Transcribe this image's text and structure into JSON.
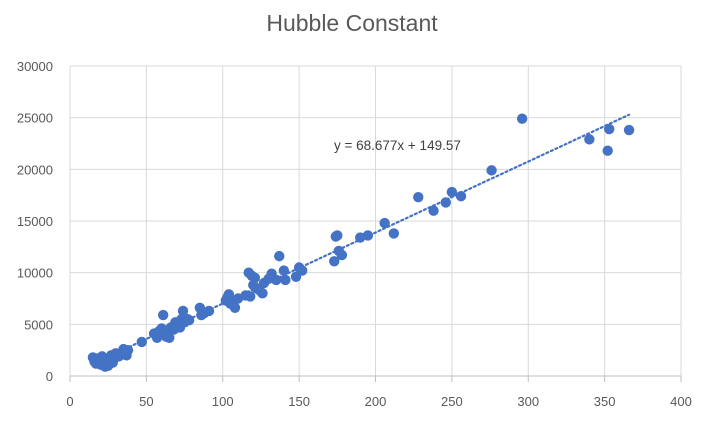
{
  "chart_data": {
    "type": "scatter",
    "title": "Hubble Constant",
    "xlabel": "",
    "ylabel": "",
    "xlim": [
      0,
      400
    ],
    "ylim": [
      0,
      30000
    ],
    "x_ticks": [
      0,
      50,
      100,
      150,
      200,
      250,
      300,
      350,
      400
    ],
    "y_ticks": [
      0,
      5000,
      10000,
      15000,
      20000,
      25000,
      30000
    ],
    "grid": true,
    "legend": "none",
    "marker_color": "#4472C4",
    "trendline": {
      "type": "linear",
      "slope": 68.677,
      "intercept": 149.57,
      "equation": "y = 68.677x + 149.57",
      "style": "dotted",
      "color": "#4472C4",
      "x_range": [
        15,
        366
      ]
    },
    "points": [
      [
        15,
        1800
      ],
      [
        16,
        1400
      ],
      [
        17,
        1200
      ],
      [
        18,
        1700
      ],
      [
        19,
        1500
      ],
      [
        20,
        1100
      ],
      [
        21,
        1900
      ],
      [
        22,
        1300
      ],
      [
        23,
        900
      ],
      [
        24,
        1600
      ],
      [
        25,
        1000
      ],
      [
        26,
        1400
      ],
      [
        27,
        2000
      ],
      [
        28,
        1300
      ],
      [
        29,
        1700
      ],
      [
        30,
        2200
      ],
      [
        32,
        1900
      ],
      [
        35,
        2600
      ],
      [
        37,
        2000
      ],
      [
        38,
        2500
      ],
      [
        47,
        3300
      ],
      [
        55,
        4100
      ],
      [
        57,
        3700
      ],
      [
        58,
        4300
      ],
      [
        60,
        4600
      ],
      [
        61,
        5900
      ],
      [
        62,
        4200
      ],
      [
        63,
        3800
      ],
      [
        64,
        4400
      ],
      [
        65,
        3700
      ],
      [
        66,
        4700
      ],
      [
        68,
        4500
      ],
      [
        69,
        5200
      ],
      [
        70,
        4900
      ],
      [
        72,
        4700
      ],
      [
        73,
        5500
      ],
      [
        74,
        6300
      ],
      [
        75,
        5200
      ],
      [
        77,
        5500
      ],
      [
        78,
        5400
      ],
      [
        85,
        6600
      ],
      [
        86,
        5900
      ],
      [
        88,
        6100
      ],
      [
        91,
        6300
      ],
      [
        102,
        7300
      ],
      [
        103,
        7600
      ],
      [
        104,
        7900
      ],
      [
        105,
        7000
      ],
      [
        107,
        7200
      ],
      [
        108,
        6600
      ],
      [
        110,
        7500
      ],
      [
        115,
        7800
      ],
      [
        117,
        10000
      ],
      [
        118,
        7700
      ],
      [
        119,
        9700
      ],
      [
        120,
        8800
      ],
      [
        121,
        9500
      ],
      [
        122,
        8500
      ],
      [
        124,
        8300
      ],
      [
        126,
        8000
      ],
      [
        127,
        9000
      ],
      [
        130,
        9400
      ],
      [
        132,
        9900
      ],
      [
        135,
        9300
      ],
      [
        137,
        11600
      ],
      [
        140,
        10200
      ],
      [
        141,
        9300
      ],
      [
        148,
        9600
      ],
      [
        150,
        10500
      ],
      [
        152,
        10200
      ],
      [
        173,
        11100
      ],
      [
        174,
        13500
      ],
      [
        175,
        13600
      ],
      [
        176,
        12100
      ],
      [
        178,
        11700
      ],
      [
        190,
        13400
      ],
      [
        195,
        13600
      ],
      [
        206,
        14800
      ],
      [
        212,
        13800
      ],
      [
        228,
        17300
      ],
      [
        238,
        16000
      ],
      [
        246,
        16800
      ],
      [
        250,
        17800
      ],
      [
        256,
        17400
      ],
      [
        276,
        19900
      ],
      [
        296,
        24900
      ],
      [
        340,
        22900
      ],
      [
        352,
        21800
      ],
      [
        353,
        23900
      ],
      [
        366,
        23800
      ]
    ]
  }
}
